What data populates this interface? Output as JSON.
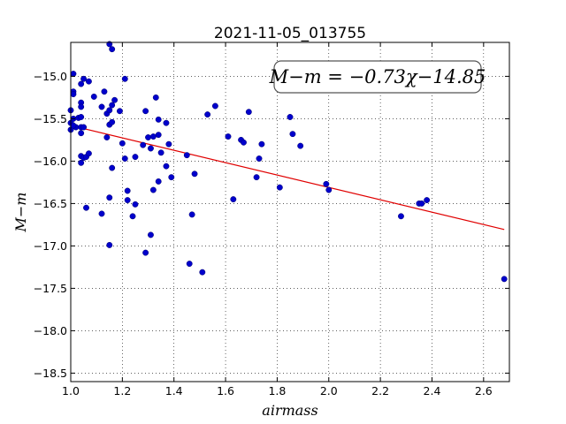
{
  "chart_data": {
    "type": "scatter",
    "title": "2021-11-05_013755",
    "xlabel": "airmass",
    "ylabel": "M−m",
    "xlim": [
      1.0,
      2.7
    ],
    "ylim": [
      -18.6,
      -14.6
    ],
    "y_inverted": true,
    "grid": true,
    "xticks": [
      1.0,
      1.2,
      1.4,
      1.6,
      1.8,
      2.0,
      2.2,
      2.4,
      2.6
    ],
    "xtick_labels": [
      "1.0",
      "1.2",
      "1.4",
      "1.6",
      "1.8",
      "2.0",
      "2.2",
      "2.4",
      "2.6"
    ],
    "yticks": [
      -15.0,
      -15.5,
      -16.0,
      -16.5,
      -17.0,
      -17.5,
      -18.0,
      -18.5
    ],
    "ytick_labels": [
      "−15.0",
      "−15.5",
      "−16.0",
      "−16.5",
      "−17.0",
      "−17.5",
      "−18.0",
      "−18.5"
    ],
    "annotation": "M−m = −0.73χ−14.85",
    "marker_color": "#0000cc",
    "fit_color": "#e00000",
    "fit": {
      "slope": -0.73,
      "intercept": -14.85,
      "x_range": [
        1.0,
        2.68
      ]
    },
    "points": [
      {
        "x": 1.01,
        "y": -14.97
      },
      {
        "x": 1.01,
        "y": -15.18
      },
      {
        "x": 1.01,
        "y": -15.21
      },
      {
        "x": 1.0,
        "y": -15.4
      },
      {
        "x": 1.01,
        "y": -15.5
      },
      {
        "x": 1.0,
        "y": -15.55
      },
      {
        "x": 1.02,
        "y": -15.6
      },
      {
        "x": 1.0,
        "y": -15.63
      },
      {
        "x": 1.01,
        "y": -15.58
      },
      {
        "x": 1.03,
        "y": -15.49
      },
      {
        "x": 1.04,
        "y": -15.48
      },
      {
        "x": 1.04,
        "y": -15.31
      },
      {
        "x": 1.04,
        "y": -15.36
      },
      {
        "x": 1.04,
        "y": -15.09
      },
      {
        "x": 1.05,
        "y": -15.03
      },
      {
        "x": 1.07,
        "y": -15.06
      },
      {
        "x": 1.04,
        "y": -15.6
      },
      {
        "x": 1.05,
        "y": -15.6
      },
      {
        "x": 1.04,
        "y": -15.67
      },
      {
        "x": 1.04,
        "y": -15.94
      },
      {
        "x": 1.05,
        "y": -15.96
      },
      {
        "x": 1.04,
        "y": -16.02
      },
      {
        "x": 1.06,
        "y": -15.95
      },
      {
        "x": 1.07,
        "y": -15.91
      },
      {
        "x": 1.06,
        "y": -16.55
      },
      {
        "x": 1.09,
        "y": -15.24
      },
      {
        "x": 1.12,
        "y": -15.36
      },
      {
        "x": 1.13,
        "y": -15.18
      },
      {
        "x": 1.14,
        "y": -15.44
      },
      {
        "x": 1.15,
        "y": -15.4
      },
      {
        "x": 1.16,
        "y": -15.34
      },
      {
        "x": 1.15,
        "y": -15.57
      },
      {
        "x": 1.16,
        "y": -15.54
      },
      {
        "x": 1.14,
        "y": -15.72
      },
      {
        "x": 1.17,
        "y": -15.28
      },
      {
        "x": 1.19,
        "y": -15.41
      },
      {
        "x": 1.15,
        "y": -14.62
      },
      {
        "x": 1.16,
        "y": -14.68
      },
      {
        "x": 1.21,
        "y": -15.03
      },
      {
        "x": 1.2,
        "y": -15.79
      },
      {
        "x": 1.21,
        "y": -15.97
      },
      {
        "x": 1.22,
        "y": -16.35
      },
      {
        "x": 1.22,
        "y": -16.46
      },
      {
        "x": 1.16,
        "y": -16.08
      },
      {
        "x": 1.15,
        "y": -16.43
      },
      {
        "x": 1.12,
        "y": -16.62
      },
      {
        "x": 1.15,
        "y": -16.99
      },
      {
        "x": 1.25,
        "y": -16.51
      },
      {
        "x": 1.24,
        "y": -16.65
      },
      {
        "x": 1.25,
        "y": -15.95
      },
      {
        "x": 1.28,
        "y": -15.81
      },
      {
        "x": 1.29,
        "y": -15.41
      },
      {
        "x": 1.3,
        "y": -15.72
      },
      {
        "x": 1.31,
        "y": -15.85
      },
      {
        "x": 1.32,
        "y": -15.71
      },
      {
        "x": 1.33,
        "y": -15.25
      },
      {
        "x": 1.34,
        "y": -15.51
      },
      {
        "x": 1.34,
        "y": -15.69
      },
      {
        "x": 1.35,
        "y": -15.9
      },
      {
        "x": 1.37,
        "y": -15.55
      },
      {
        "x": 1.38,
        "y": -15.8
      },
      {
        "x": 1.37,
        "y": -16.06
      },
      {
        "x": 1.39,
        "y": -16.19
      },
      {
        "x": 1.34,
        "y": -16.24
      },
      {
        "x": 1.32,
        "y": -16.34
      },
      {
        "x": 1.31,
        "y": -16.87
      },
      {
        "x": 1.29,
        "y": -17.08
      },
      {
        "x": 1.45,
        "y": -15.93
      },
      {
        "x": 1.48,
        "y": -16.15
      },
      {
        "x": 1.47,
        "y": -16.63
      },
      {
        "x": 1.46,
        "y": -17.21
      },
      {
        "x": 1.51,
        "y": -17.31
      },
      {
        "x": 1.53,
        "y": -15.45
      },
      {
        "x": 1.56,
        "y": -15.35
      },
      {
        "x": 1.61,
        "y": -15.71
      },
      {
        "x": 1.63,
        "y": -16.45
      },
      {
        "x": 1.66,
        "y": -15.75
      },
      {
        "x": 1.67,
        "y": -15.78
      },
      {
        "x": 1.69,
        "y": -15.42
      },
      {
        "x": 1.72,
        "y": -16.19
      },
      {
        "x": 1.73,
        "y": -15.97
      },
      {
        "x": 1.74,
        "y": -15.8
      },
      {
        "x": 1.81,
        "y": -16.31
      },
      {
        "x": 1.85,
        "y": -15.48
      },
      {
        "x": 1.86,
        "y": -15.68
      },
      {
        "x": 1.89,
        "y": -15.82
      },
      {
        "x": 1.99,
        "y": -16.27
      },
      {
        "x": 2.0,
        "y": -16.34
      },
      {
        "x": 2.28,
        "y": -16.65
      },
      {
        "x": 2.35,
        "y": -16.5
      },
      {
        "x": 2.36,
        "y": -16.5
      },
      {
        "x": 2.38,
        "y": -16.46
      },
      {
        "x": 2.68,
        "y": -17.39
      }
    ]
  }
}
